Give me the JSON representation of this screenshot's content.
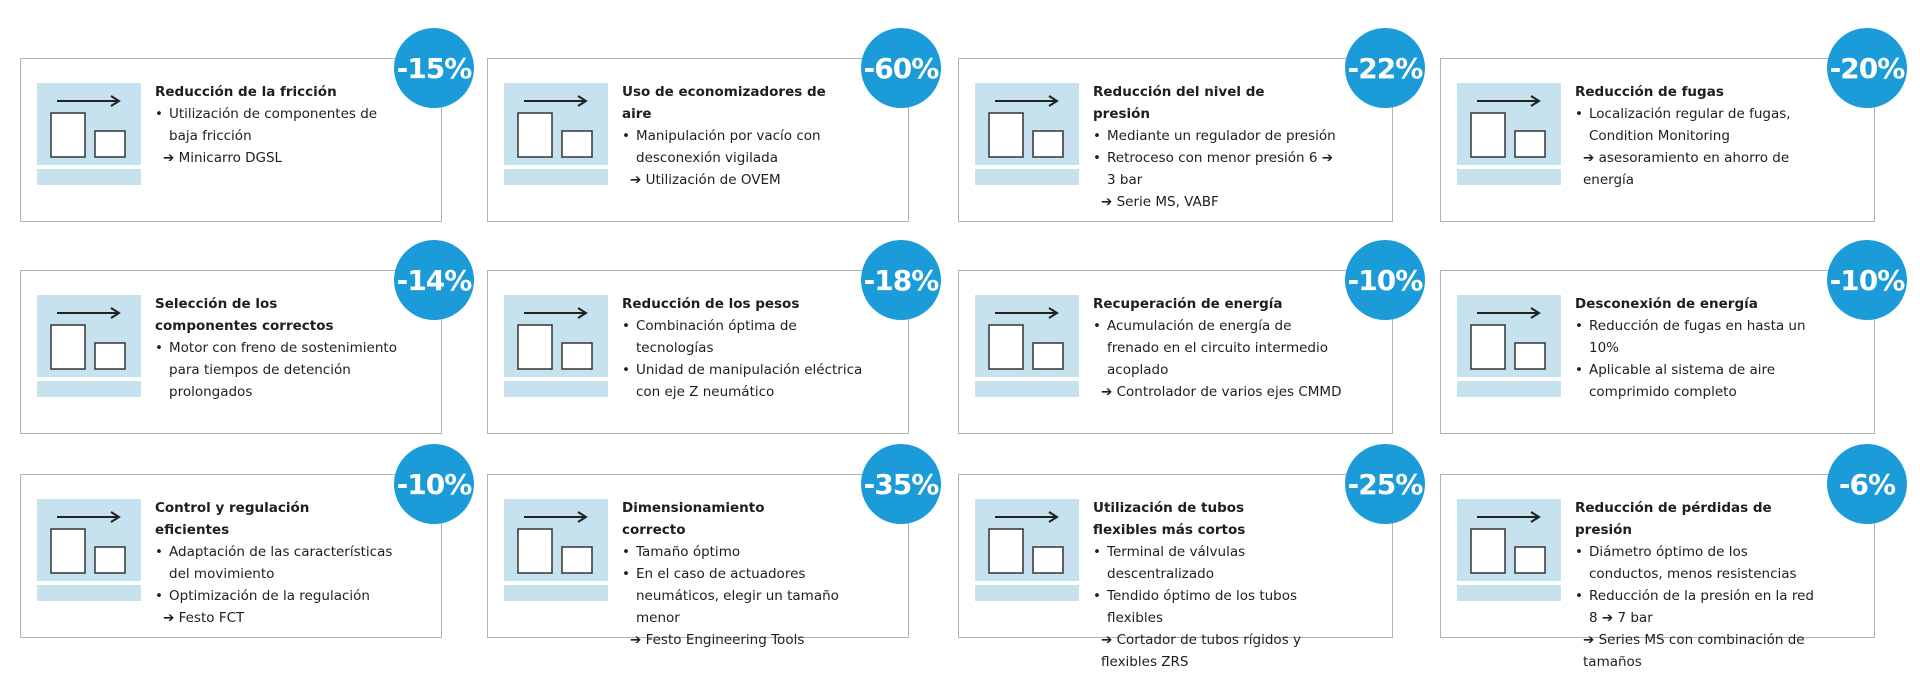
{
  "cards": [
    {
      "title": "Reducción de la fricción",
      "badge": "-15%",
      "bullets": [
        {
          "text": "Utilización de componentes de baja fricción",
          "note": "➔ Minicarro DGSL"
        }
      ]
    },
    {
      "title": "Uso de economizadores de aire",
      "badge": "-60%",
      "bullets": [
        {
          "text": "Manipulación por vacío con desconexión vigilada",
          "note": "➔ Utilización de OVEM"
        }
      ]
    },
    {
      "title": "Reducción del nivel de presión",
      "badge": "-22%",
      "bullets": [
        {
          "text": "Mediante un regulador de presión"
        },
        {
          "text": "Retroceso con menor presión 6 ➔ 3 bar",
          "note": "➔ Serie MS, VABF"
        }
      ]
    },
    {
      "title": "Reducción de fugas",
      "badge": "-20%",
      "bullets": [
        {
          "text": "Localización regular de fugas, Condition Monitoring",
          "note": "➔ asesoramiento en ahorro de energía"
        }
      ]
    },
    {
      "title": "Selección de los componentes correctos",
      "badge": "-14%",
      "bullets": [
        {
          "text": "Motor con freno de sostenimiento para tiempos de detención prolongados"
        }
      ]
    },
    {
      "title": "Reducción de los pesos",
      "badge": "-18%",
      "bullets": [
        {
          "text": "Combinación óptima de tecnologías"
        },
        {
          "text": "Unidad de manipulación eléctrica con eje Z neumático"
        }
      ]
    },
    {
      "title": "Recuperación de energía",
      "badge": "-10%",
      "bullets": [
        {
          "text": "Acumulación de energía de frenado en el circuito intermedio acoplado",
          "note": "➔ Controlador de varios ejes CMMD"
        }
      ]
    },
    {
      "title": "Desconexión de energía",
      "badge": "-10%",
      "bullets": [
        {
          "text": "Reducción de fugas en hasta un 10%"
        },
        {
          "text": "Aplicable al sistema de aire comprimido completo"
        }
      ]
    },
    {
      "title": "Control y regulación eficientes",
      "badge": "-10%",
      "bullets": [
        {
          "text": "Adaptación de las características del movimiento"
        },
        {
          "text": "Optimización de la regulación",
          "note": "➔ Festo FCT"
        }
      ]
    },
    {
      "title": "Dimensionamiento correcto",
      "badge": "-35%",
      "bullets": [
        {
          "text": "Tamaño óptimo"
        },
        {
          "text": "En el caso de actuadores neumáticos, elegir un tamaño menor",
          "note": "➔ Festo Engineering Tools"
        }
      ]
    },
    {
      "title": "Utilización de tubos flexibles más cortos",
      "badge": "-25%",
      "bullets": [
        {
          "text": "Terminal de válvulas descentralizado"
        },
        {
          "text": "Tendido óptimo de los tubos flexibles",
          "note": "➔ Cortador de tubos rígidos y flexibles ZRS"
        }
      ]
    },
    {
      "title": "Reducción de pérdidas de presión",
      "badge": "-6%",
      "bullets": [
        {
          "text": "Diámetro óptimo de los conductos, menos resistencias"
        },
        {
          "text": "Reducción de la presión en la red 8 ➔ 7 bar",
          "note": "➔ Series MS con combinación de tamaños"
        }
      ]
    }
  ]
}
